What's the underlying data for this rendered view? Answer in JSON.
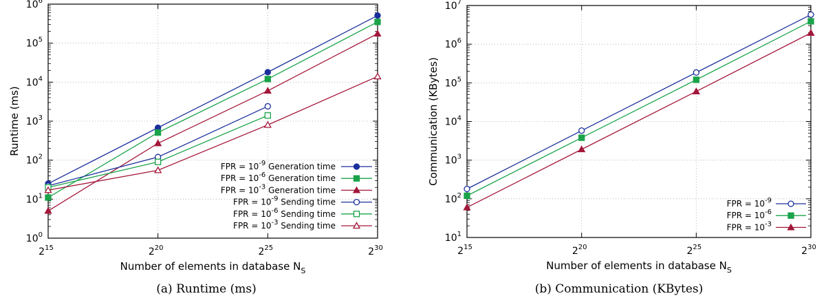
{
  "colors": {
    "blue": "#1a2f9c",
    "green": "#1aa34a",
    "red": "#a3173a"
  },
  "chart_data": [
    {
      "type": "line",
      "ylabel": "Runtime (ms)",
      "xlabel": "Number of elements in database N",
      "xlabel_sub": "S",
      "caption": "(a) Runtime (ms)",
      "x": [
        15,
        20,
        25,
        30
      ],
      "xticks": [
        15,
        20,
        25,
        30
      ],
      "yscale": "log",
      "ylim_exp": [
        0,
        6
      ],
      "grid": true,
      "legend_position": "bottom-right",
      "series": [
        {
          "name": "Generation time",
          "fpr_exp": "-9",
          "color": "blue",
          "marker": "circle-filled",
          "x": [
            15,
            20,
            25,
            30
          ],
          "values": [
            25,
            680,
            18000,
            510000
          ]
        },
        {
          "name": "Generation time",
          "fpr_exp": "-6",
          "color": "green",
          "marker": "square-filled",
          "x": [
            15,
            20,
            25,
            30
          ],
          "values": [
            11,
            510,
            12000,
            350000
          ]
        },
        {
          "name": "Generation time",
          "fpr_exp": "-3",
          "color": "red",
          "marker": "triangle-filled",
          "x": [
            15,
            20,
            25,
            30
          ],
          "values": [
            5,
            270,
            6000,
            175000
          ]
        },
        {
          "name": "Sending time",
          "fpr_exp": "-9",
          "color": "blue",
          "marker": "circle-open",
          "x": [
            15,
            20,
            25
          ],
          "values": [
            22,
            120,
            2400
          ]
        },
        {
          "name": "Sending time",
          "fpr_exp": "-6",
          "color": "green",
          "marker": "square-open",
          "x": [
            15,
            20,
            25
          ],
          "values": [
            20,
            90,
            1400
          ]
        },
        {
          "name": "Sending time",
          "fpr_exp": "-3",
          "color": "red",
          "marker": "triangle-open",
          "x": [
            15,
            20,
            25,
            30
          ],
          "values": [
            17,
            55,
            800,
            14000
          ]
        }
      ]
    },
    {
      "type": "line",
      "ylabel": "Communication (KBytes)",
      "xlabel": "Number of elements in database N",
      "xlabel_sub": "S",
      "caption": "(b) Communication (KBytes)",
      "x": [
        15,
        20,
        25,
        30
      ],
      "xticks": [
        15,
        20,
        25,
        30
      ],
      "yscale": "log",
      "ylim_exp": [
        1,
        7
      ],
      "grid": true,
      "legend_position": "bottom-right",
      "series": [
        {
          "name": "",
          "fpr_exp": "-9",
          "color": "blue",
          "marker": "circle-open",
          "x": [
            15,
            20,
            25,
            30
          ],
          "values": [
            180,
            5800,
            185000,
            5800000
          ]
        },
        {
          "name": "",
          "fpr_exp": "-6",
          "color": "green",
          "marker": "square-filled",
          "x": [
            15,
            20,
            25,
            30
          ],
          "values": [
            120,
            3800,
            120000,
            3900000
          ]
        },
        {
          "name": "",
          "fpr_exp": "-3",
          "color": "red",
          "marker": "triangle-filled",
          "x": [
            15,
            20,
            25,
            30
          ],
          "values": [
            60,
            1900,
            60000,
            1950000
          ]
        }
      ]
    }
  ],
  "legend_prefix": "FPR = 10",
  "tick_base": "10",
  "xtick_base": "2"
}
